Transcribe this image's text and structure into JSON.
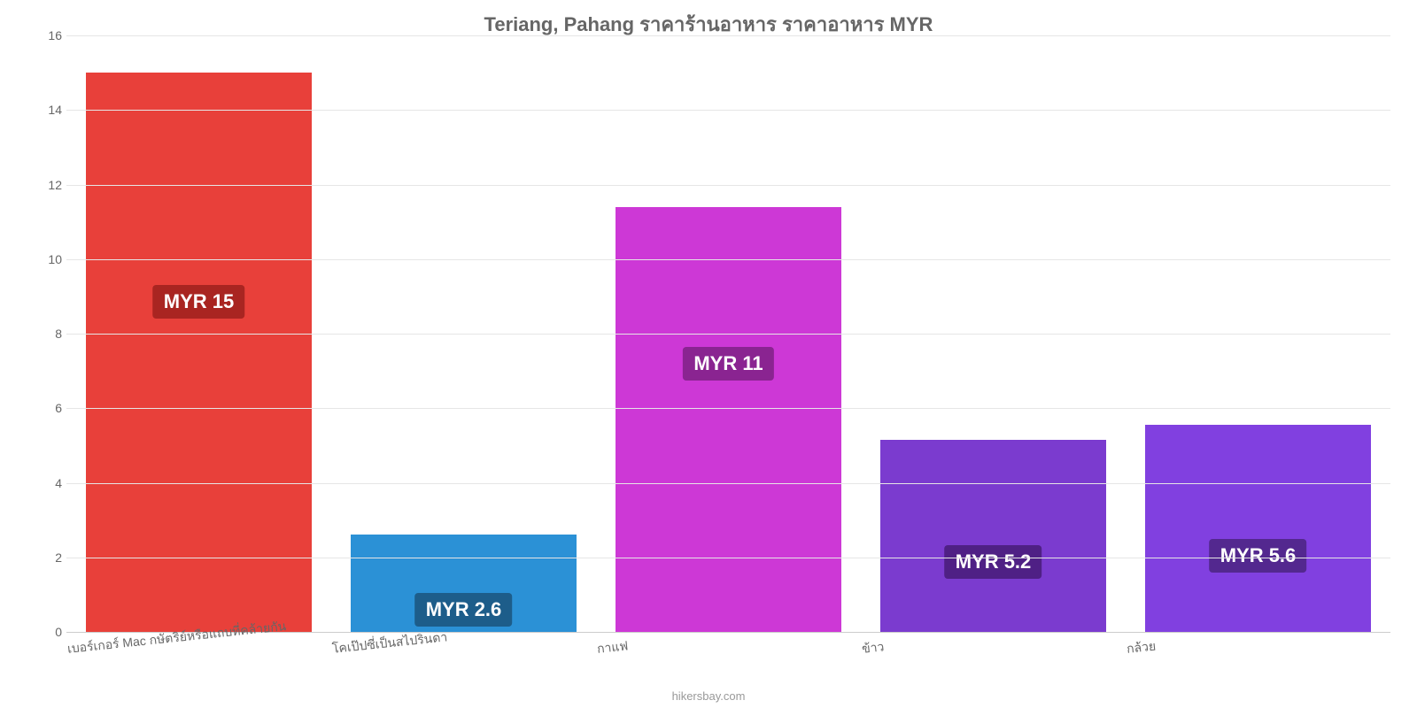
{
  "chart": {
    "type": "bar",
    "title": "Teriang, Pahang ราคาร้านอาหาร ราคาอาหาร MYR",
    "title_color": "#666666",
    "title_fontsize": 22,
    "background_color": "#ffffff",
    "grid_color": "#e6e6e6",
    "axis_text_color": "#666666",
    "axis_fontsize": 14,
    "ylim": [
      0,
      16
    ],
    "yticks": [
      0,
      2,
      4,
      6,
      8,
      10,
      12,
      14,
      16
    ],
    "bar_width_pct": 85,
    "label_fontsize": 22,
    "label_text_color": "#ffffff",
    "categories": [
      "เบอร์เกอร์ Mac กษัตริย์หรือแถบที่คล้ายกัน",
      "โคเป๊ปซี่เป็นสไปรินดา",
      "กาแฟ",
      "ข้าว",
      "กล้วย"
    ],
    "values": [
      15,
      2.6,
      11.4,
      5.15,
      5.55
    ],
    "value_labels": [
      "MYR 15",
      "MYR 2.6",
      "MYR 11",
      "MYR 5.2",
      "MYR 5.6"
    ],
    "bar_colors": [
      "#e8403a",
      "#2b91d6",
      "#cd38d6",
      "#7b3bcf",
      "#8140e0"
    ],
    "label_bg_colors": [
      "#a92521",
      "#1d5d8a",
      "#8a2491",
      "#4f2085",
      "#53288f"
    ],
    "label_y_offsets_pct": [
      38,
      60,
      33,
      55,
      55
    ],
    "x_label_rotation_deg": -6,
    "attribution": "hikersbay.com",
    "attribution_color": "#999999"
  }
}
